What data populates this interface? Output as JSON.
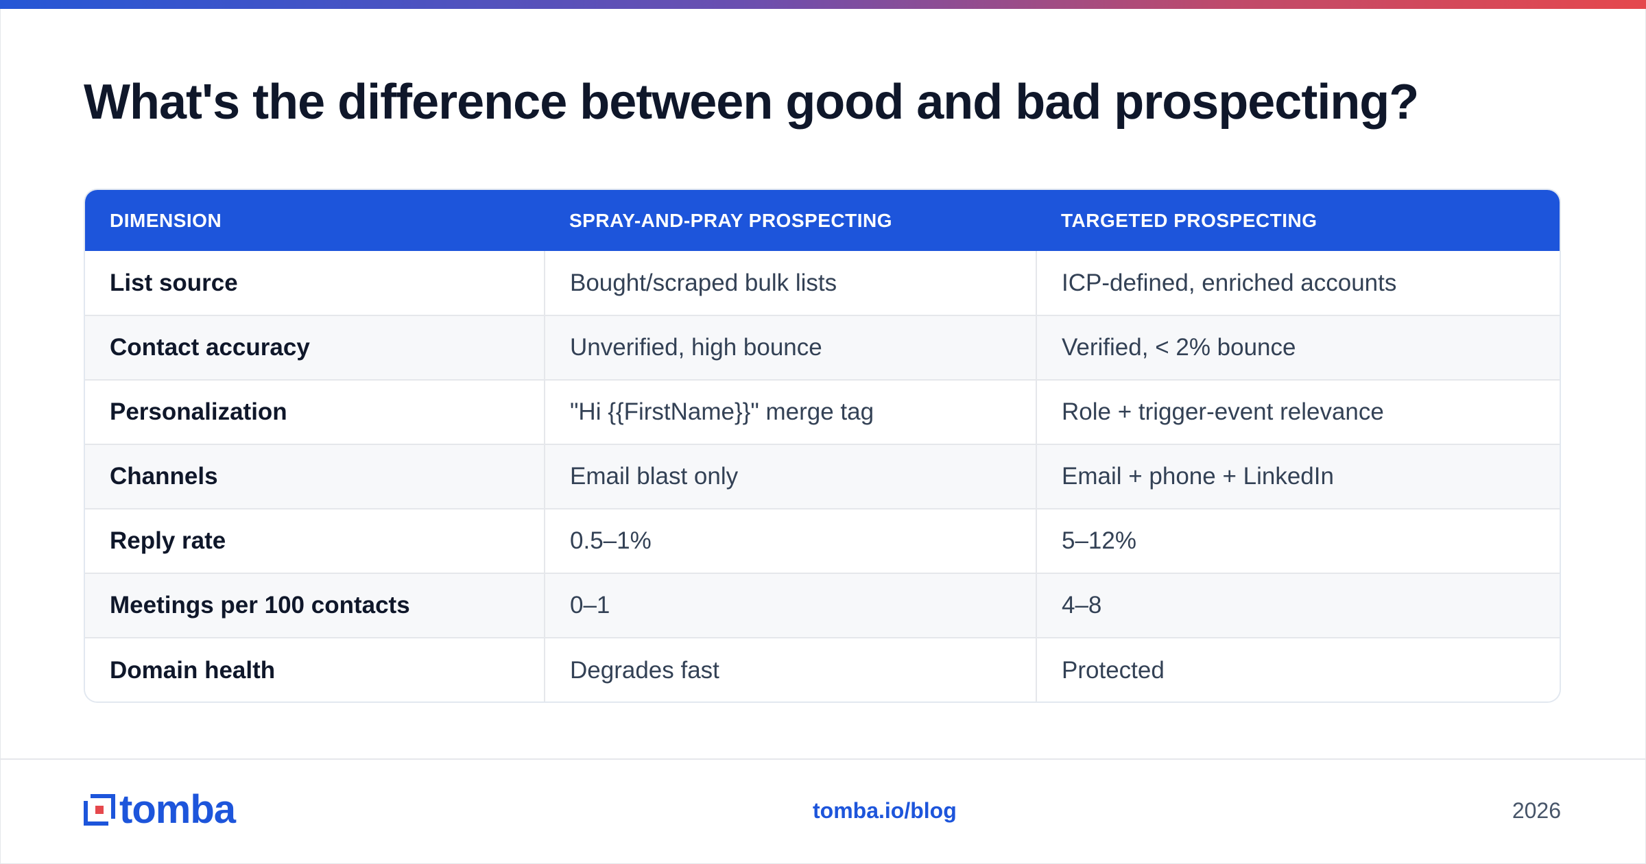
{
  "title": "What's the difference between good and bad prospecting?",
  "table": {
    "headers": [
      "DIMENSION",
      "SPRAY-AND-PRAY PROSPECTING",
      "TARGETED PROSPECTING"
    ],
    "rows": [
      [
        "List source",
        "Bought/scraped bulk lists",
        "ICP-defined, enriched accounts"
      ],
      [
        "Contact accuracy",
        "Unverified, high bounce",
        "Verified, < 2% bounce"
      ],
      [
        "Personalization",
        "\"Hi {{FirstName}}\" merge tag",
        "Role + trigger-event relevance"
      ],
      [
        "Channels",
        "Email blast only",
        "Email + phone + LinkedIn"
      ],
      [
        "Reply rate",
        "0.5–1%",
        "5–12%"
      ],
      [
        "Meetings per 100 contacts",
        "0–1",
        "4–8"
      ],
      [
        "Domain health",
        "Degrades fast",
        "Protected"
      ]
    ]
  },
  "footer": {
    "logo_text": "tomba",
    "url": "tomba.io/blog",
    "year": "2026"
  },
  "colors": {
    "accent": "#1d55db",
    "title": "#0f172a",
    "cell_text": "#334155",
    "logo_red": "#e5484d"
  }
}
